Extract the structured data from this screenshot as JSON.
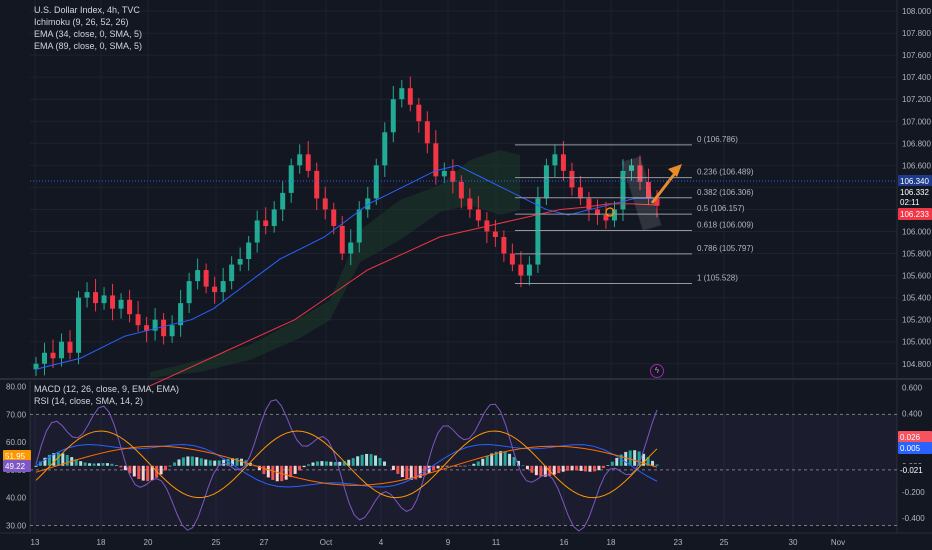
{
  "header": {
    "symbol_line": "U.S. Dollar Index, 4h, TVC",
    "indicators": [
      "Ichimoku (9, 26, 52, 26)",
      "EMA (34, close, 0, SMA, 5)",
      "EMA (89, close, 0, SMA, 5)"
    ]
  },
  "sub_header": {
    "indicators": [
      "MACD (12, 26, close, 9, EMA, EMA)",
      "RSI (14, close, SMA, 14, 2)"
    ]
  },
  "price_axis": {
    "ticks": [
      "108.000",
      "107.800",
      "107.600",
      "107.400",
      "107.200",
      "107.000",
      "106.800",
      "106.600",
      "106.400",
      "106.200",
      "106.000",
      "105.800",
      "105.600",
      "105.400",
      "105.200",
      "105.000",
      "104.800"
    ],
    "ticks_values": [
      108.0,
      107.8,
      107.6,
      107.4,
      107.2,
      107.0,
      106.8,
      106.6,
      106.4,
      106.2,
      106.0,
      105.8,
      105.6,
      105.4,
      105.2,
      105.0,
      104.8
    ],
    "price_tags": [
      {
        "text": "106.340",
        "bg": "#1e3a8a",
        "fg": "#ffffff",
        "value": 106.34
      },
      {
        "text": "106.332",
        "bg": "#131722",
        "fg": "#ffffff",
        "value": 106.332
      },
      {
        "text": "02:11",
        "bg": "#131722",
        "fg": "#ffffff",
        "value": 106.27
      },
      {
        "text": "106.233",
        "bg": "#f23645",
        "fg": "#ffffff",
        "value": 106.233
      }
    ]
  },
  "macd_axis": {
    "ticks": [
      "0.600",
      "0.400",
      "0.200",
      "0.000",
      "-0.200",
      "-0.400"
    ],
    "ticks_values": [
      0.6,
      0.4,
      0.2,
      0.0,
      -0.2,
      -0.4
    ],
    "tags": [
      {
        "text": "0.026",
        "bg": "#f7525f",
        "value": 0.06
      },
      {
        "text": "0.005",
        "bg": "#2962ff",
        "value": 0.0
      },
      {
        "text": "-0.021",
        "bg": "#131722",
        "value": -0.1
      }
    ]
  },
  "rsi_axis": {
    "ticks": [
      "80.00",
      "70.00",
      "60.00",
      "50.00",
      "40.00",
      "30.00"
    ],
    "ticks_values": [
      80,
      70,
      60,
      50,
      40,
      30
    ],
    "tags": [
      {
        "text": "51.95",
        "bg": "#ff9800",
        "value": 51.95
      },
      {
        "text": "49.22",
        "bg": "#7e57c2",
        "value": 49.22
      }
    ]
  },
  "time_axis": {
    "labels": [
      "13",
      "18",
      "20",
      "25",
      "27",
      "Oct",
      "4",
      "9",
      "11",
      "16",
      "18",
      "23",
      "25",
      "30",
      "Nov"
    ]
  },
  "fibonacci": {
    "levels": [
      {
        "label": "0 (106.786)",
        "price": 106.786
      },
      {
        "label": "0.236 (106.489)",
        "price": 106.489
      },
      {
        "label": "0.382 (106.306)",
        "price": 106.306
      },
      {
        "label": "0.5 (106.157)",
        "price": 106.157
      },
      {
        "label": "0.618 (106.009)",
        "price": 106.009
      },
      {
        "label": "0.786 (105.797)",
        "price": 105.797
      },
      {
        "label": "1 (105.528)",
        "price": 105.528
      }
    ]
  },
  "colors": {
    "background": "#131722",
    "up": "#22ab94",
    "down": "#f23645",
    "ema34": "#2962ff",
    "ema89": "#f23645",
    "cloud": "#1b3a2a",
    "fib": "#9598a1",
    "macd_line": "#2962ff",
    "signal_line": "#ff6d00",
    "rsi": "#7e57c2",
    "rsi_ma": "#ff9800",
    "arrow": "#e88b2d"
  },
  "chart_data": {
    "type": "candlestick",
    "symbol": "U.S. Dollar Index",
    "interval": "4h",
    "y_range": [
      104.68,
      108.1
    ],
    "closes_approx": [
      104.8,
      104.9,
      104.85,
      105.0,
      104.9,
      105.4,
      105.45,
      105.35,
      105.42,
      105.3,
      105.38,
      105.25,
      105.15,
      105.1,
      105.2,
      105.05,
      105.15,
      105.35,
      105.55,
      105.65,
      105.5,
      105.45,
      105.55,
      105.7,
      105.75,
      105.9,
      106.1,
      106.05,
      106.2,
      106.35,
      106.6,
      106.7,
      106.55,
      106.3,
      106.2,
      106.05,
      105.8,
      105.9,
      106.2,
      106.3,
      106.6,
      106.9,
      107.2,
      107.3,
      107.15,
      107.0,
      106.8,
      106.5,
      106.55,
      106.45,
      106.3,
      106.2,
      106.1,
      106.0,
      105.95,
      105.8,
      105.7,
      105.6,
      105.7,
      106.3,
      106.6,
      106.7,
      106.55,
      106.4,
      106.3,
      106.2,
      106.15,
      106.1,
      106.2,
      106.55,
      106.6,
      106.45,
      106.3,
      106.233
    ],
    "ema34_approx": [
      104.75,
      104.8,
      104.85,
      104.95,
      105.05,
      105.1,
      105.15,
      105.2,
      105.3,
      105.45,
      105.6,
      105.75,
      105.85,
      105.95,
      106.1,
      106.25,
      106.35,
      106.45,
      106.55,
      106.6,
      106.5,
      106.4,
      106.3,
      106.2,
      106.15,
      106.2,
      106.25,
      106.3,
      106.3
    ],
    "ema89_approx": [
      104.6,
      104.7,
      104.8,
      104.9,
      105.0,
      105.1,
      105.2,
      105.35,
      105.5,
      105.65,
      105.75,
      105.85,
      105.95,
      106.0,
      106.05,
      106.1,
      106.15,
      106.2,
      106.22,
      106.25,
      106.25,
      106.24
    ],
    "macd_range": [
      -0.5,
      0.65
    ],
    "rsi_range": [
      28,
      82
    ]
  }
}
